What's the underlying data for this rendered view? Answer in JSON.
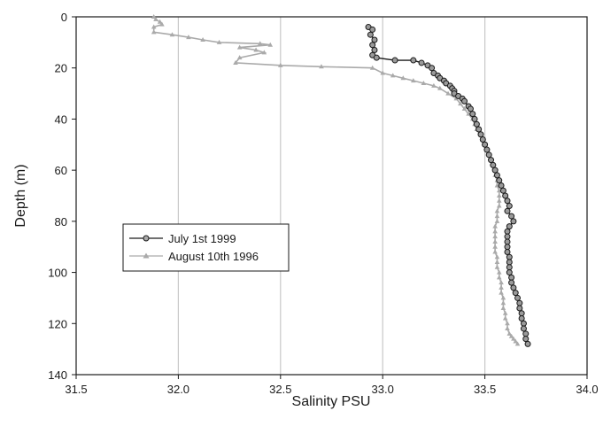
{
  "chart_data": {
    "type": "line",
    "title": "",
    "xlabel": "Salinity PSU",
    "ylabel": "Depth (m)",
    "xlim": [
      31.5,
      34.0
    ],
    "ylim": [
      140,
      0
    ],
    "y_inverted": true,
    "x_ticks": [
      "31.5",
      "32.0",
      "32.5",
      "33.0",
      "33.5",
      "34.0"
    ],
    "y_ticks": [
      "0",
      "20",
      "40",
      "60",
      "80",
      "100",
      "120",
      "140"
    ],
    "x_tick_values": [
      31.5,
      32.0,
      32.5,
      33.0,
      33.5,
      34.0
    ],
    "y_tick_values": [
      0,
      20,
      40,
      60,
      80,
      100,
      120,
      140
    ],
    "vertical_gridlines_at": [
      32.0,
      32.5,
      33.0,
      33.5
    ],
    "legend_position": "left",
    "series": [
      {
        "name": "July 1st 1999",
        "color": "#1a1a1a",
        "marker": "open-circle",
        "points": [
          [
            32.93,
            4
          ],
          [
            32.95,
            5
          ],
          [
            32.94,
            7
          ],
          [
            32.96,
            9
          ],
          [
            32.95,
            11
          ],
          [
            32.96,
            13
          ],
          [
            32.95,
            15
          ],
          [
            32.97,
            16
          ],
          [
            33.06,
            17
          ],
          [
            33.15,
            17
          ],
          [
            33.19,
            18
          ],
          [
            33.22,
            19
          ],
          [
            33.24,
            20
          ],
          [
            33.25,
            22
          ],
          [
            33.27,
            23
          ],
          [
            33.28,
            24
          ],
          [
            33.3,
            25
          ],
          [
            33.31,
            26
          ],
          [
            33.33,
            27
          ],
          [
            33.34,
            28
          ],
          [
            33.35,
            29
          ],
          [
            33.35,
            30
          ],
          [
            33.37,
            31
          ],
          [
            33.39,
            32
          ],
          [
            33.4,
            33
          ],
          [
            33.42,
            35
          ],
          [
            33.43,
            36
          ],
          [
            33.44,
            38
          ],
          [
            33.45,
            40
          ],
          [
            33.46,
            42
          ],
          [
            33.47,
            44
          ],
          [
            33.48,
            46
          ],
          [
            33.49,
            48
          ],
          [
            33.5,
            50
          ],
          [
            33.51,
            52
          ],
          [
            33.52,
            54
          ],
          [
            33.53,
            56
          ],
          [
            33.54,
            58
          ],
          [
            33.55,
            60
          ],
          [
            33.56,
            62
          ],
          [
            33.57,
            64
          ],
          [
            33.58,
            66
          ],
          [
            33.59,
            68
          ],
          [
            33.6,
            70
          ],
          [
            33.61,
            72
          ],
          [
            33.62,
            74
          ],
          [
            33.61,
            76
          ],
          [
            33.63,
            78
          ],
          [
            33.64,
            80
          ],
          [
            33.62,
            82
          ],
          [
            33.61,
            84
          ],
          [
            33.61,
            86
          ],
          [
            33.61,
            88
          ],
          [
            33.61,
            90
          ],
          [
            33.61,
            92
          ],
          [
            33.62,
            94
          ],
          [
            33.62,
            96
          ],
          [
            33.62,
            98
          ],
          [
            33.62,
            100
          ],
          [
            33.63,
            102
          ],
          [
            33.63,
            104
          ],
          [
            33.64,
            106
          ],
          [
            33.65,
            108
          ],
          [
            33.66,
            110
          ],
          [
            33.67,
            112
          ],
          [
            33.67,
            114
          ],
          [
            33.68,
            116
          ],
          [
            33.68,
            118
          ],
          [
            33.69,
            120
          ],
          [
            33.69,
            122
          ],
          [
            33.7,
            124
          ],
          [
            33.7,
            126
          ],
          [
            33.71,
            128
          ]
        ]
      },
      {
        "name": "August 10th 1996",
        "color": "#aaaaaa",
        "marker": "triangle",
        "points": [
          [
            31.88,
            0
          ],
          [
            31.89,
            1
          ],
          [
            31.91,
            2
          ],
          [
            31.92,
            3
          ],
          [
            31.88,
            4
          ],
          [
            31.88,
            6
          ],
          [
            31.97,
            7
          ],
          [
            32.05,
            8
          ],
          [
            32.12,
            9
          ],
          [
            32.2,
            10
          ],
          [
            32.4,
            10.5
          ],
          [
            32.45,
            11
          ],
          [
            32.3,
            12
          ],
          [
            32.38,
            13
          ],
          [
            32.42,
            14
          ],
          [
            32.3,
            16
          ],
          [
            32.28,
            18
          ],
          [
            32.5,
            19
          ],
          [
            32.7,
            19.5
          ],
          [
            32.95,
            20
          ],
          [
            33.0,
            22
          ],
          [
            33.05,
            23
          ],
          [
            33.1,
            24
          ],
          [
            33.15,
            25
          ],
          [
            33.2,
            26
          ],
          [
            33.25,
            27
          ],
          [
            33.28,
            28
          ],
          [
            33.32,
            30
          ],
          [
            33.36,
            32
          ],
          [
            33.38,
            34
          ],
          [
            33.4,
            36
          ],
          [
            33.42,
            38
          ],
          [
            33.44,
            40
          ],
          [
            33.45,
            42
          ],
          [
            33.46,
            44
          ],
          [
            33.48,
            46
          ],
          [
            33.49,
            48
          ],
          [
            33.5,
            50
          ],
          [
            33.51,
            52
          ],
          [
            33.52,
            54
          ],
          [
            33.53,
            56
          ],
          [
            33.54,
            58
          ],
          [
            33.55,
            60
          ],
          [
            33.55,
            62
          ],
          [
            33.56,
            64
          ],
          [
            33.56,
            66
          ],
          [
            33.57,
            68
          ],
          [
            33.57,
            70
          ],
          [
            33.57,
            72
          ],
          [
            33.57,
            74
          ],
          [
            33.56,
            76
          ],
          [
            33.56,
            78
          ],
          [
            33.56,
            80
          ],
          [
            33.55,
            82
          ],
          [
            33.55,
            84
          ],
          [
            33.55,
            86
          ],
          [
            33.55,
            88
          ],
          [
            33.55,
            90
          ],
          [
            33.55,
            92
          ],
          [
            33.56,
            94
          ],
          [
            33.56,
            96
          ],
          [
            33.56,
            98
          ],
          [
            33.57,
            100
          ],
          [
            33.57,
            102
          ],
          [
            33.58,
            104
          ],
          [
            33.58,
            106
          ],
          [
            33.58,
            108
          ],
          [
            33.59,
            110
          ],
          [
            33.59,
            112
          ],
          [
            33.59,
            114
          ],
          [
            33.6,
            116
          ],
          [
            33.6,
            118
          ],
          [
            33.61,
            120
          ],
          [
            33.61,
            122
          ],
          [
            33.62,
            124
          ],
          [
            33.63,
            125
          ],
          [
            33.64,
            126
          ],
          [
            33.65,
            127
          ],
          [
            33.66,
            128
          ]
        ]
      }
    ]
  }
}
